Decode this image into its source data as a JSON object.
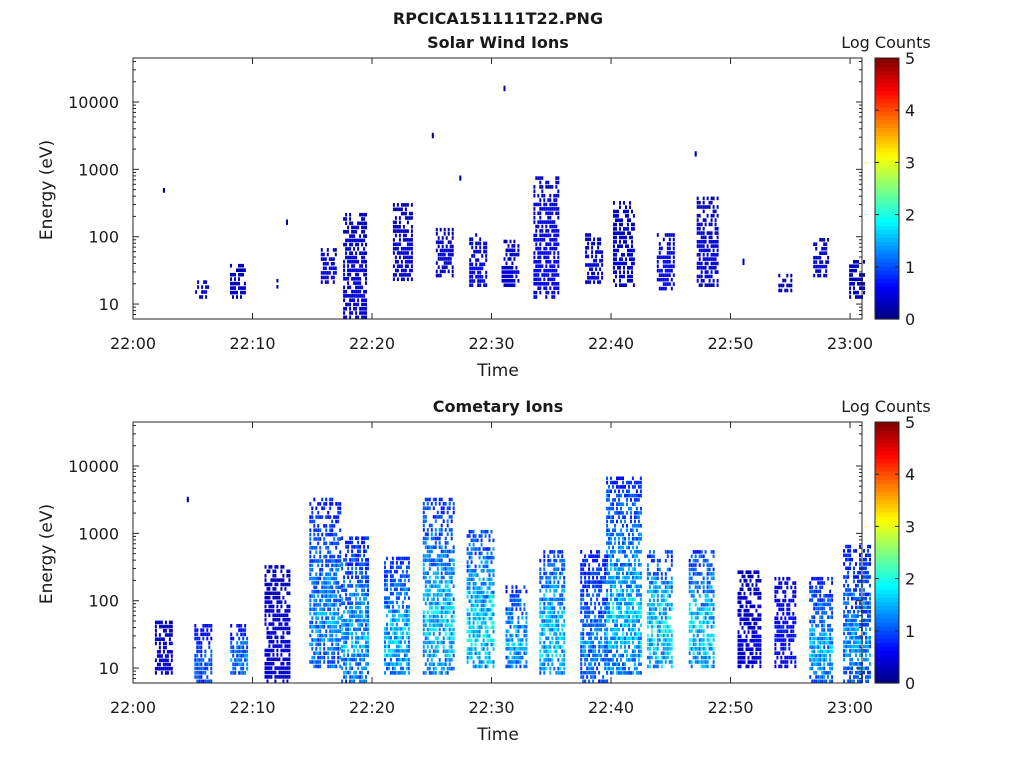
{
  "figure_title": "RPCICA151111T22.PNG",
  "chart_data": [
    {
      "type": "heatmap",
      "title": "Solar Wind Ions",
      "xlabel": "Time",
      "ylabel": "Energy (eV)",
      "x_ticks": [
        "22:00",
        "22:10",
        "22:20",
        "22:30",
        "22:40",
        "22:50",
        "23:00"
      ],
      "xlim": [
        "22:00",
        "23:01"
      ],
      "y_ticks": [
        "10",
        "100",
        "1000",
        "10000"
      ],
      "y_scale": "log",
      "ylim": [
        6,
        45000
      ],
      "colorbar": {
        "label": "Log Counts",
        "ticks": [
          "0",
          "1",
          "2",
          "3",
          "4",
          "5"
        ],
        "range": [
          0,
          5
        ]
      },
      "clusters": [
        {
          "time": "22:02.5",
          "e_min": 450,
          "e_max": 470,
          "level": 0.1
        },
        {
          "time": "22:05.7",
          "e_min": 12,
          "e_max": 20,
          "level": 0.4
        },
        {
          "time": "22:08.7",
          "e_min": 12,
          "e_max": 35,
          "level": 0.3
        },
        {
          "time": "22:12.0",
          "e_min": 17,
          "e_max": 21,
          "level": 0.3
        },
        {
          "time": "22:12.8",
          "e_min": 150,
          "e_max": 160,
          "level": 0.1
        },
        {
          "time": "22:16.3",
          "e_min": 20,
          "e_max": 60,
          "level": 0.4
        },
        {
          "time": "22:18.5",
          "e_min": 6,
          "e_max": 200,
          "level": 0.4
        },
        {
          "time": "22:22.5",
          "e_min": 22,
          "e_max": 280,
          "level": 0.4
        },
        {
          "time": "22:25.0",
          "e_min": 2900,
          "e_max": 3100,
          "level": 0.1
        },
        {
          "time": "22:26.0",
          "e_min": 25,
          "e_max": 120,
          "level": 0.3
        },
        {
          "time": "22:27.3",
          "e_min": 680,
          "e_max": 720,
          "level": 0.1
        },
        {
          "time": "22:28.8",
          "e_min": 18,
          "e_max": 100,
          "level": 0.5
        },
        {
          "time": "22:31.0",
          "e_min": 14500,
          "e_max": 15500,
          "level": 0.1
        },
        {
          "time": "22:31.5",
          "e_min": 18,
          "e_max": 80,
          "level": 0.4
        },
        {
          "time": "22:34.5",
          "e_min": 12,
          "e_max": 700,
          "level": 0.5
        },
        {
          "time": "22:38.5",
          "e_min": 20,
          "e_max": 100,
          "level": 0.4
        },
        {
          "time": "22:41.0",
          "e_min": 18,
          "e_max": 300,
          "level": 0.4
        },
        {
          "time": "22:44.5",
          "e_min": 16,
          "e_max": 100,
          "level": 0.6
        },
        {
          "time": "22:47.0",
          "e_min": 1550,
          "e_max": 1650,
          "level": 0.1
        },
        {
          "time": "22:48.0",
          "e_min": 18,
          "e_max": 350,
          "level": 0.4
        },
        {
          "time": "22:51.0",
          "e_min": 38,
          "e_max": 42,
          "level": 0.2
        },
        {
          "time": "22:54.5",
          "e_min": 15,
          "e_max": 25,
          "level": 0.2
        },
        {
          "time": "22:57.5",
          "e_min": 25,
          "e_max": 85,
          "level": 0.3
        },
        {
          "time": "23:00.5",
          "e_min": 12,
          "e_max": 40,
          "level": 0.3
        }
      ]
    },
    {
      "type": "heatmap",
      "title": "Cometary Ions",
      "xlabel": "Time",
      "ylabel": "Energy (eV)",
      "x_ticks": [
        "22:00",
        "22:10",
        "22:20",
        "22:30",
        "22:40",
        "22:50",
        "23:00"
      ],
      "xlim": [
        "22:00",
        "23:01"
      ],
      "y_ticks": [
        "10",
        "100",
        "1000",
        "10000"
      ],
      "y_scale": "log",
      "ylim": [
        6,
        45000
      ],
      "colorbar": {
        "label": "Log Counts",
        "ticks": [
          "0",
          "1",
          "2",
          "3",
          "4",
          "5"
        ],
        "range": [
          0,
          5
        ]
      },
      "clusters": [
        {
          "time": "22:02.5",
          "e_min": 8,
          "e_max": 45,
          "level": 0.4
        },
        {
          "time": "22:04.5",
          "e_min": 2900,
          "e_max": 3100,
          "level": 0.1
        },
        {
          "time": "22:05.8",
          "e_min": 6,
          "e_max": 40,
          "level": 1.2
        },
        {
          "time": "22:08.8",
          "e_min": 8,
          "e_max": 40,
          "level": 1.4
        },
        {
          "time": "22:12.0",
          "e_min": 6,
          "e_max": 300,
          "level": 0.4
        },
        {
          "time": "22:16.0",
          "e_min": 10,
          "e_max": 3000,
          "level": 1.5
        },
        {
          "time": "22:18.5",
          "e_min": 6,
          "e_max": 800,
          "level": 1.6
        },
        {
          "time": "22:22.0",
          "e_min": 8,
          "e_max": 400,
          "level": 1.8
        },
        {
          "time": "22:25.5",
          "e_min": 8,
          "e_max": 3000,
          "level": 1.8
        },
        {
          "time": "22:29.0",
          "e_min": 10,
          "e_max": 1000,
          "level": 2.0
        },
        {
          "time": "22:32.0",
          "e_min": 10,
          "e_max": 150,
          "level": 1.7
        },
        {
          "time": "22:35.0",
          "e_min": 8,
          "e_max": 500,
          "level": 1.9
        },
        {
          "time": "22:38.5",
          "e_min": 6,
          "e_max": 500,
          "level": 1.4
        },
        {
          "time": "22:41.0",
          "e_min": 8,
          "e_max": 6200,
          "level": 1.8
        },
        {
          "time": "22:44.0",
          "e_min": 10,
          "e_max": 500,
          "level": 2.0
        },
        {
          "time": "22:47.5",
          "e_min": 10,
          "e_max": 500,
          "level": 1.9
        },
        {
          "time": "22:51.5",
          "e_min": 10,
          "e_max": 250,
          "level": 0.4
        },
        {
          "time": "22:54.5",
          "e_min": 10,
          "e_max": 200,
          "level": 0.7
        },
        {
          "time": "22:57.5",
          "e_min": 6,
          "e_max": 200,
          "level": 1.6
        },
        {
          "time": "23:00.5",
          "e_min": 6,
          "e_max": 600,
          "level": 1.5
        }
      ]
    }
  ]
}
